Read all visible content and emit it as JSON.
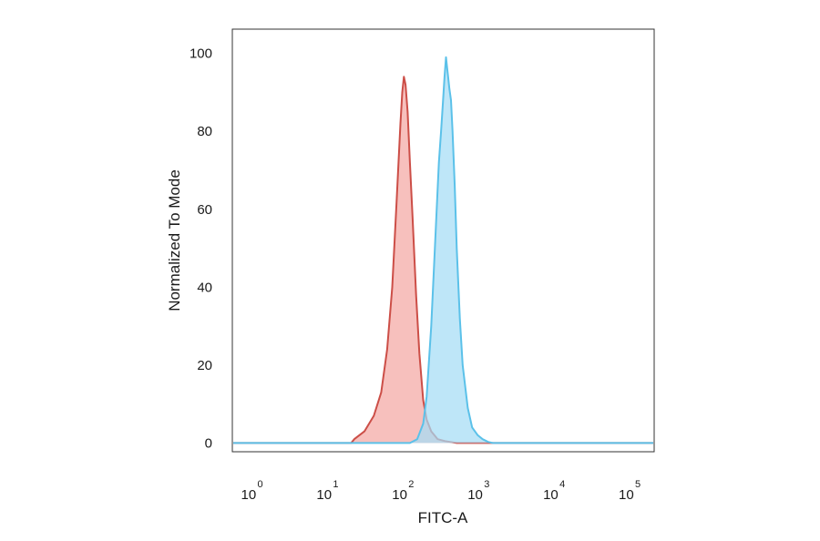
{
  "chart_data": {
    "type": "area",
    "xlabel": "FITC-A",
    "ylabel": "Normalized To Mode",
    "xscale": "log",
    "xlim": [
      0.55,
      200000
    ],
    "ylim": [
      -2,
      106
    ],
    "grid": false,
    "y_ticks": [
      {
        "value": 0,
        "label": "0"
      },
      {
        "value": 20,
        "label": "20"
      },
      {
        "value": 40,
        "label": "40"
      },
      {
        "value": 60,
        "label": "60"
      },
      {
        "value": 80,
        "label": "80"
      },
      {
        "value": 100,
        "label": "100"
      }
    ],
    "x_ticks": [
      {
        "value": 1,
        "base": "10",
        "exp": "0"
      },
      {
        "value": 10,
        "base": "10",
        "exp": "1"
      },
      {
        "value": 100,
        "base": "10",
        "exp": "2"
      },
      {
        "value": 1000,
        "base": "10",
        "exp": "3"
      },
      {
        "value": 10000,
        "base": "10",
        "exp": "4"
      },
      {
        "value": 100000,
        "base": "10",
        "exp": "5"
      }
    ],
    "series": [
      {
        "color": "#f4a7a3",
        "stroke": "#cc4e47",
        "x": [
          0.55,
          20,
          22,
          30,
          40,
          50,
          60,
          70,
          80,
          90,
          95,
          100,
          105,
          112,
          120,
          130,
          145,
          160,
          180,
          200,
          230,
          280,
          350,
          500,
          1000,
          200000
        ],
        "y": [
          0,
          0,
          1,
          3,
          7,
          13,
          24,
          40,
          62,
          82,
          90,
          94,
          92,
          85,
          72,
          58,
          38,
          23,
          11,
          6,
          3,
          1,
          0.5,
          0,
          0,
          0
        ]
      },
      {
        "color": "#a5dcf5",
        "stroke": "#5bc1e9",
        "x": [
          0.55,
          120,
          150,
          180,
          200,
          230,
          260,
          290,
          310,
          330,
          345,
          360,
          375,
          390,
          400,
          420,
          440,
          470,
          500,
          550,
          600,
          700,
          800,
          950,
          1100,
          1300,
          1500,
          2000,
          200000
        ],
        "y": [
          0,
          0,
          1,
          5,
          12,
          30,
          52,
          72,
          80,
          88,
          94,
          99,
          96,
          93,
          91,
          88,
          80,
          66,
          50,
          32,
          20,
          9,
          4,
          2,
          1,
          0.3,
          0,
          0,
          0
        ]
      }
    ]
  }
}
